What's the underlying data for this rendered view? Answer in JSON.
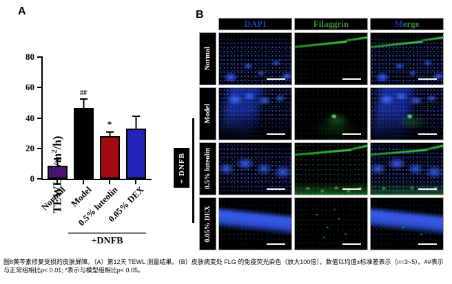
{
  "chart_data": {
    "type": "bar",
    "title": "",
    "ylabel": "TEWL (g/m2/h)",
    "categories": [
      "Normal",
      "Model",
      "0.5% luteolin",
      "0.05% DEX"
    ],
    "values": [
      8.5,
      46.5,
      28,
      33
    ],
    "errors": [
      4,
      5.5,
      2.5,
      7.5
    ],
    "bar_colors": [
      "#4a1572",
      "#000000",
      "#a30d11",
      "#2023b5"
    ],
    "annotations": [
      {
        "category_index": 1,
        "text": "##"
      },
      {
        "category_index": 2,
        "text": "*"
      }
    ],
    "ylim": [
      0,
      80
    ],
    "yticks": [
      0,
      20,
      40,
      60,
      80
    ],
    "group_label": "+DNFB",
    "group_span_categories": [
      "Model",
      "0.05% DEX"
    ],
    "legend": "none",
    "grid": "off"
  },
  "figure": {
    "panelA": {
      "label": "A",
      "ylabel_pre": "TEWL (g/m",
      "ylabel_sup": "2",
      "ylabel_post": "/h)"
    },
    "panelB": {
      "label": "B",
      "columns": [
        {
          "parts": [
            {
              "text": "DAPI",
              "color": "#1e3eb5"
            }
          ]
        },
        {
          "parts": [
            {
              "text": "Filaggrin",
              "color": "#3f8e3a"
            }
          ]
        },
        {
          "parts": [
            {
              "text": "M",
              "color": "#2431b9"
            },
            {
              "text": "erge",
              "color": "#2f8f31"
            }
          ]
        }
      ],
      "rows": [
        "Normal",
        "Model",
        "0.5% luteolin",
        "0.05% DEX"
      ],
      "treatment_label": "+ DNFB"
    },
    "caption": "图8黄芩素修复受损的皮肤屏障。（A）第12天 TEWL 测量结果。（B）皮肤病变处 FLG 的免疫荧光染色（放大100倍）。数值以均值±标准差表示（n=3~5）。##表示与正常组相比p< 0.01; *表示与模型组相比p< 0.05。"
  }
}
